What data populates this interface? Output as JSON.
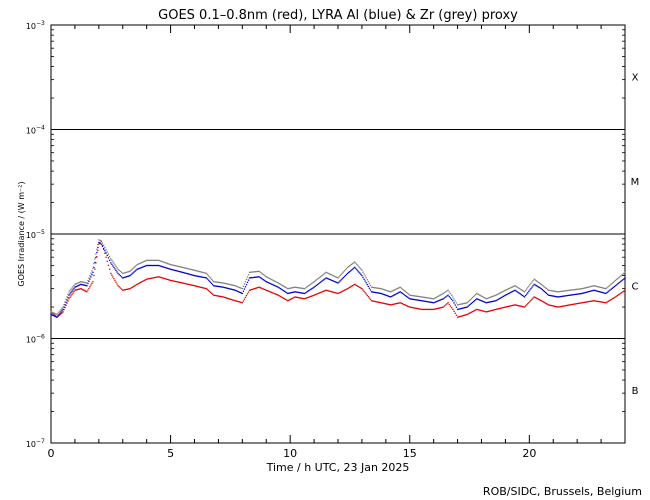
{
  "chart_data": {
    "type": "scatter",
    "title": "GOES 0.1–0.8nm (red), LYRA Al (blue) & Zr (grey) proxy",
    "xlabel": "Time / h UTC, 23 Jan 2025",
    "ylabel": "GOES Irradiance / (W m⁻²)",
    "xlim": [
      0,
      24
    ],
    "ylim": [
      1e-07,
      0.001
    ],
    "yscale": "log",
    "x_ticks": [
      0,
      5,
      10,
      15,
      20
    ],
    "x_tick_labels": [
      "0",
      "5",
      "10",
      "15",
      "20"
    ],
    "y_ticks": [
      {
        "value": 0.001,
        "base": "10",
        "exp": "−3"
      },
      {
        "value": 0.0001,
        "base": "10",
        "exp": "−4"
      },
      {
        "value": 1e-05,
        "base": "10",
        "exp": "−5"
      },
      {
        "value": 1e-06,
        "base": "10",
        "exp": "−6"
      },
      {
        "value": 1e-07,
        "base": "10",
        "exp": "−7"
      }
    ],
    "reference_lines": [
      0.0001,
      1e-05,
      1e-06
    ],
    "flare_classes": [
      {
        "label": "X",
        "value": 0.00032
      },
      {
        "label": "M",
        "value": 3.2e-05
      },
      {
        "label": "C",
        "value": 3.2e-06
      },
      {
        "label": "B",
        "value": 3.2e-07
      }
    ],
    "series": [
      {
        "color": "#e00000",
        "x": [
          0.0,
          0.25,
          0.5,
          0.75,
          1.0,
          1.25,
          1.5,
          1.75,
          2.0,
          2.1,
          2.3,
          2.5,
          2.8,
          3.0,
          3.3,
          3.6,
          4.0,
          4.5,
          5.0,
          5.5,
          6.0,
          6.5,
          6.8,
          7.2,
          7.7,
          8.0,
          8.3,
          8.7,
          9.0,
          9.5,
          9.9,
          10.2,
          10.6,
          11.0,
          11.5,
          12.0,
          12.4,
          12.7,
          13.0,
          13.4,
          13.8,
          14.2,
          14.6,
          15.0,
          15.5,
          16.0,
          16.4,
          16.6,
          16.8,
          17.0,
          17.4,
          17.8,
          18.2,
          18.6,
          19.0,
          19.4,
          19.8,
          20.2,
          20.5,
          20.8,
          21.2,
          21.7,
          22.2,
          22.7,
          23.2,
          23.6,
          24.0
        ],
        "y": [
          1.8e-06,
          1.6e-06,
          1.8e-06,
          2.4e-06,
          2.9e-06,
          3e-06,
          2.8e-06,
          3.5e-06,
          8e-06,
          8.5e-06,
          6e-06,
          4.2e-06,
          3.2e-06,
          2.9e-06,
          3e-06,
          3.3e-06,
          3.7e-06,
          3.9e-06,
          3.6e-06,
          3.4e-06,
          3.2e-06,
          3e-06,
          2.6e-06,
          2.5e-06,
          2.3e-06,
          2.2e-06,
          2.9e-06,
          3.1e-06,
          2.9e-06,
          2.6e-06,
          2.3e-06,
          2.5e-06,
          2.4e-06,
          2.6e-06,
          2.9e-06,
          2.7e-06,
          3e-06,
          3.3e-06,
          3e-06,
          2.3e-06,
          2.2e-06,
          2.1e-06,
          2.2e-06,
          2e-06,
          1.9e-06,
          1.9e-06,
          2e-06,
          2.2e-06,
          1.9e-06,
          1.6e-06,
          1.7e-06,
          1.9e-06,
          1.8e-06,
          1.9e-06,
          2e-06,
          2.1e-06,
          2e-06,
          2.5e-06,
          2.3e-06,
          2.1e-06,
          2e-06,
          2.1e-06,
          2.2e-06,
          2.3e-06,
          2.2e-06,
          2.5e-06,
          2.9e-06
        ]
      },
      {
        "color": "#0000cc",
        "x": [
          0.0,
          0.25,
          0.5,
          0.75,
          1.0,
          1.25,
          1.5,
          1.75,
          2.0,
          2.1,
          2.3,
          2.5,
          2.8,
          3.0,
          3.3,
          3.6,
          4.0,
          4.5,
          5.0,
          5.5,
          6.0,
          6.5,
          6.8,
          7.2,
          7.7,
          8.0,
          8.3,
          8.7,
          9.0,
          9.5,
          9.9,
          10.2,
          10.6,
          11.0,
          11.5,
          12.0,
          12.4,
          12.7,
          13.0,
          13.4,
          13.8,
          14.2,
          14.6,
          15.0,
          15.5,
          16.0,
          16.4,
          16.6,
          16.8,
          17.0,
          17.4,
          17.8,
          18.2,
          18.6,
          19.0,
          19.4,
          19.8,
          20.2,
          20.5,
          20.8,
          21.2,
          21.7,
          22.2,
          22.7,
          23.2,
          23.6,
          24.0
        ],
        "y": [
          1.7e-06,
          1.6e-06,
          1.9e-06,
          2.6e-06,
          3.1e-06,
          3.3e-06,
          3.2e-06,
          4.3e-06,
          8.3e-06,
          8e-06,
          6.6e-06,
          5.3e-06,
          4.2e-06,
          3.8e-06,
          4e-06,
          4.6e-06,
          5e-06,
          5e-06,
          4.6e-06,
          4.3e-06,
          4e-06,
          3.8e-06,
          3.2e-06,
          3.1e-06,
          2.9e-06,
          2.7e-06,
          3.8e-06,
          3.9e-06,
          3.5e-06,
          3.1e-06,
          2.7e-06,
          2.8e-06,
          2.7e-06,
          3.1e-06,
          3.8e-06,
          3.4e-06,
          4.2e-06,
          4.8e-06,
          4e-06,
          2.8e-06,
          2.7e-06,
          2.5e-06,
          2.8e-06,
          2.4e-06,
          2.3e-06,
          2.2e-06,
          2.4e-06,
          2.6e-06,
          2.3e-06,
          1.9e-06,
          2e-06,
          2.4e-06,
          2.2e-06,
          2.3e-06,
          2.6e-06,
          2.9e-06,
          2.5e-06,
          3.3e-06,
          3e-06,
          2.6e-06,
          2.5e-06,
          2.6e-06,
          2.7e-06,
          2.9e-06,
          2.7e-06,
          3.2e-06,
          3.8e-06
        ]
      },
      {
        "color": "#808080",
        "x": [
          0.0,
          0.25,
          0.5,
          0.75,
          1.0,
          1.25,
          1.5,
          1.75,
          2.0,
          2.1,
          2.3,
          2.5,
          2.8,
          3.0,
          3.3,
          3.6,
          4.0,
          4.5,
          5.0,
          5.5,
          6.0,
          6.5,
          6.8,
          7.2,
          7.7,
          8.0,
          8.3,
          8.7,
          9.0,
          9.5,
          9.9,
          10.2,
          10.6,
          11.0,
          11.5,
          12.0,
          12.4,
          12.7,
          13.0,
          13.4,
          13.8,
          14.2,
          14.6,
          15.0,
          15.5,
          16.0,
          16.4,
          16.6,
          16.8,
          17.0,
          17.4,
          17.8,
          18.2,
          18.6,
          19.0,
          19.4,
          19.8,
          20.2,
          20.5,
          20.8,
          21.2,
          21.7,
          22.2,
          22.7,
          23.2,
          23.6,
          24.0
        ],
        "y": [
          1.8e-06,
          1.7e-06,
          2e-06,
          2.8e-06,
          3.3e-06,
          3.5e-06,
          3.4e-06,
          4.7e-06,
          8.8e-06,
          8.6e-06,
          7.1e-06,
          5.8e-06,
          4.6e-06,
          4.2e-06,
          4.4e-06,
          5.1e-06,
          5.6e-06,
          5.6e-06,
          5.1e-06,
          4.8e-06,
          4.5e-06,
          4.2e-06,
          3.5e-06,
          3.4e-06,
          3.2e-06,
          3e-06,
          4.3e-06,
          4.4e-06,
          3.9e-06,
          3.4e-06,
          3e-06,
          3.1e-06,
          3e-06,
          3.5e-06,
          4.3e-06,
          3.8e-06,
          4.8e-06,
          5.4e-06,
          4.5e-06,
          3.1e-06,
          3e-06,
          2.8e-06,
          3.1e-06,
          2.6e-06,
          2.5e-06,
          2.4e-06,
          2.7e-06,
          2.9e-06,
          2.5e-06,
          2.1e-06,
          2.2e-06,
          2.7e-06,
          2.4e-06,
          2.6e-06,
          2.9e-06,
          3.2e-06,
          2.8e-06,
          3.7e-06,
          3.3e-06,
          2.9e-06,
          2.8e-06,
          2.9e-06,
          3e-06,
          3.2e-06,
          3e-06,
          3.6e-06,
          4.3e-06
        ]
      }
    ],
    "credit": "ROB/SIDC, Brussels, Belgium"
  }
}
